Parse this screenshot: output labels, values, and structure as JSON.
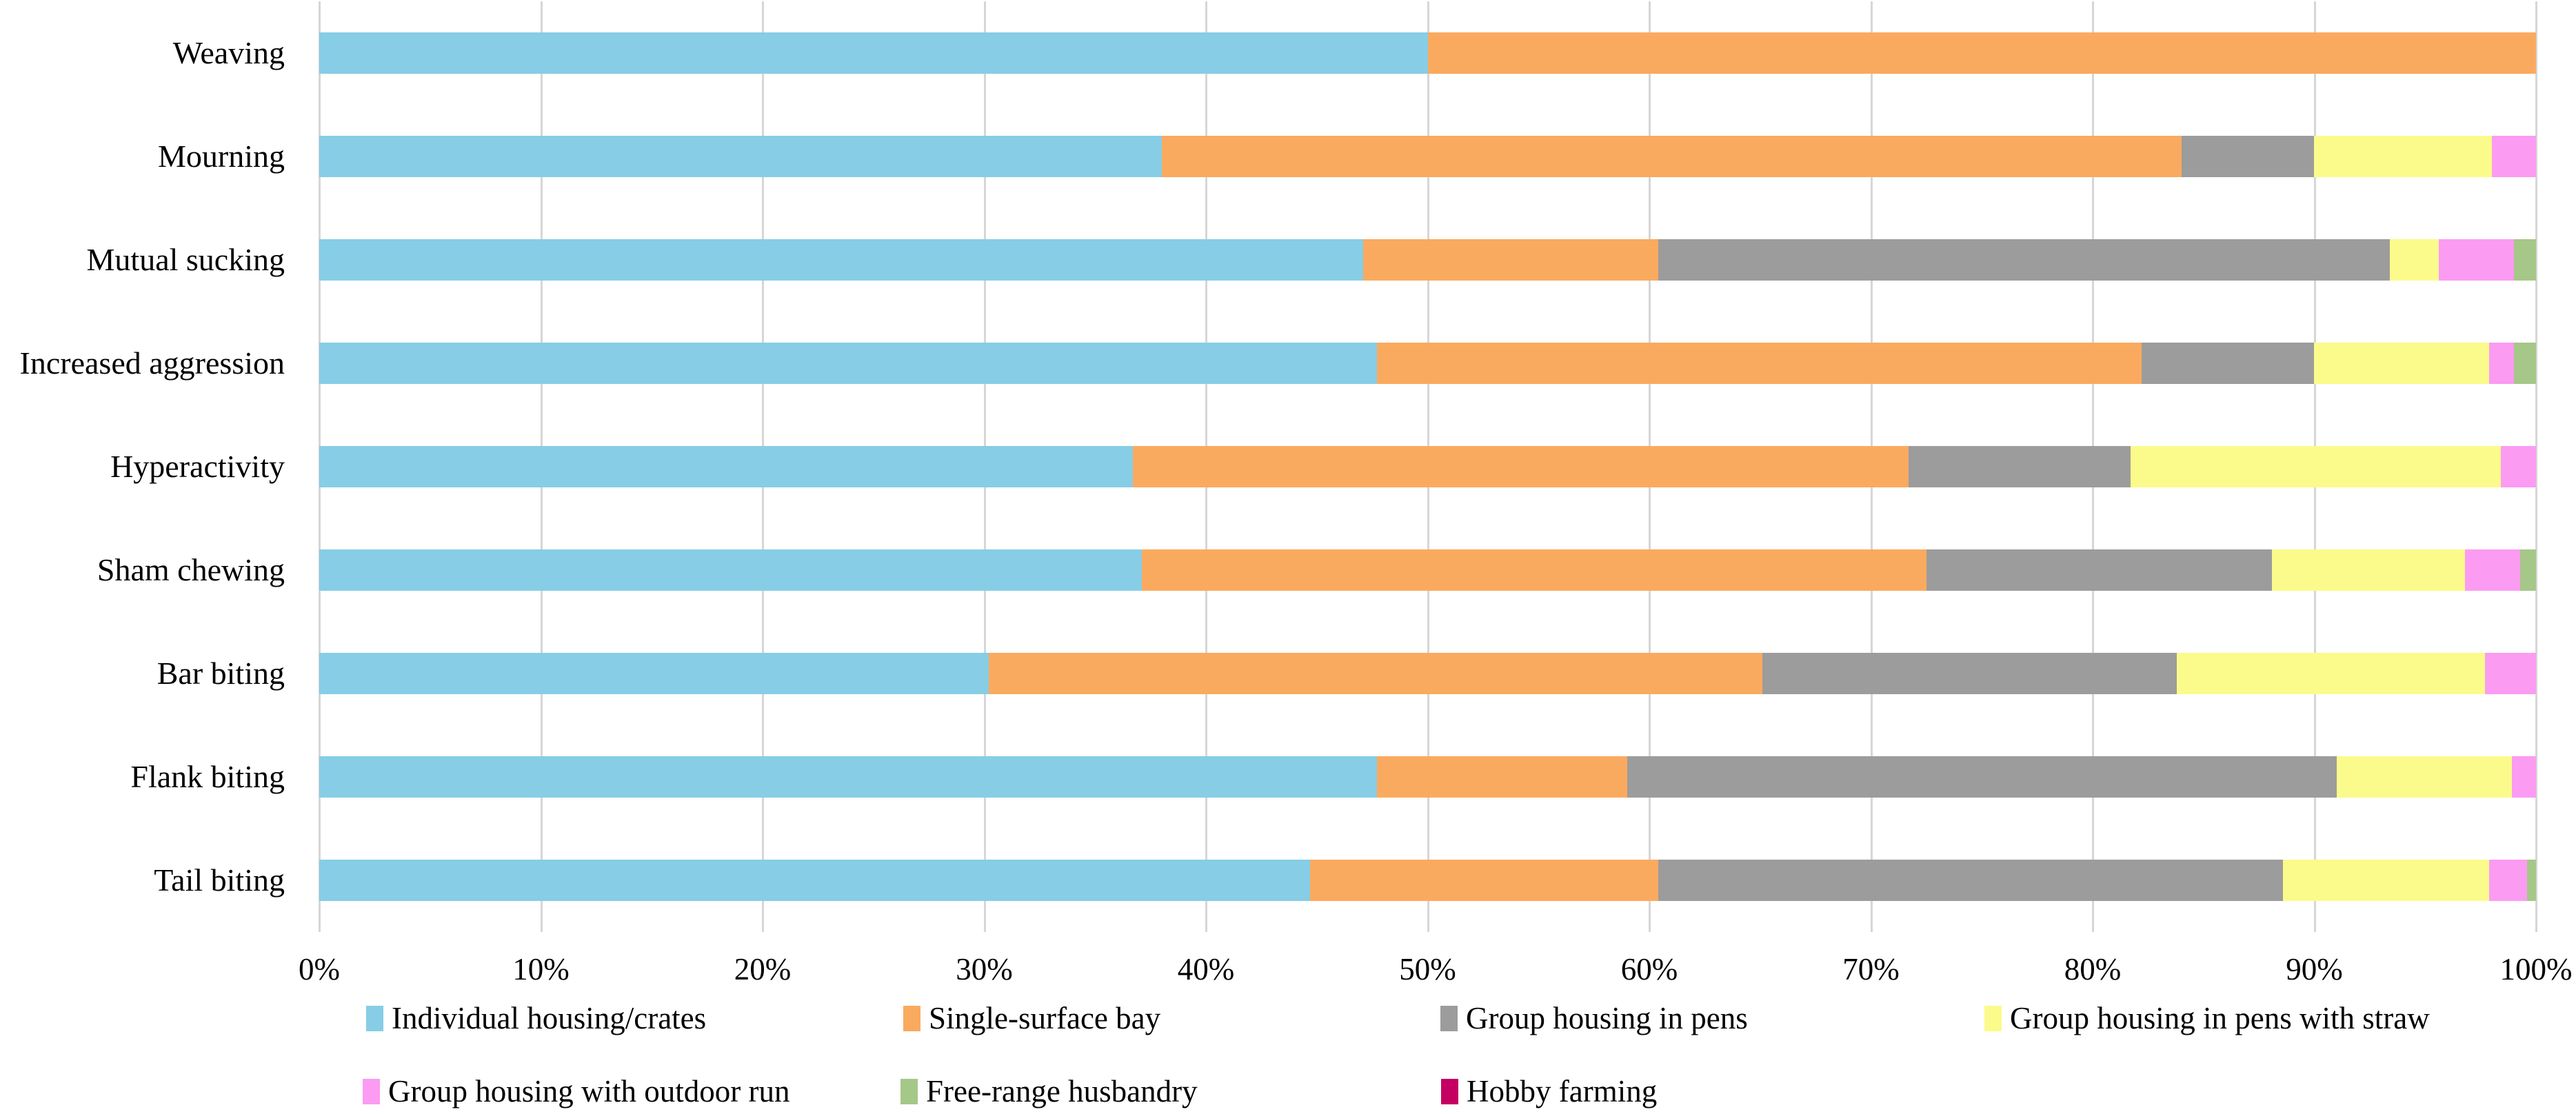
{
  "figure": {
    "background": "#FFFFFF",
    "text_color": "#000000",
    "gridline_color": "#D6D6D6"
  },
  "chart_data": {
    "type": "bar",
    "orientation": "horizontal",
    "stacked": true,
    "unit": "percent",
    "title": "",
    "xlabel": "",
    "ylabel": "",
    "xlim": [
      0,
      100
    ],
    "grid": "vertical",
    "legend_position": "bottom",
    "x_ticks": [
      "0%",
      "10%",
      "20%",
      "30%",
      "40%",
      "50%",
      "60%",
      "70%",
      "80%",
      "90%",
      "100%"
    ],
    "categories": [
      "Weaving",
      "Mourning",
      "Mutual sucking",
      "Increased aggression",
      "Hyperactivity",
      "Sham chewing",
      "Bar biting",
      "Flank biting",
      "Tail biting"
    ],
    "series": [
      {
        "name": "Individual housing/crates",
        "color": "#87CDE6",
        "values": [
          50,
          38,
          47.1,
          47.7,
          36.7,
          37.1,
          30.2,
          47.7,
          44.7
        ]
      },
      {
        "name": "Single-surface bay",
        "color": "#FAAA5F",
        "values": [
          50,
          46,
          13.3,
          34.5,
          35.0,
          35.4,
          34.9,
          11.3,
          15.7
        ]
      },
      {
        "name": "Group housing in pens",
        "color": "#9C9C9C",
        "values": [
          0,
          6,
          33.0,
          7.8,
          10.0,
          15.6,
          18.7,
          32.0,
          28.2
        ]
      },
      {
        "name": "Group housing in pens with straw",
        "color": "#FBFB8B",
        "values": [
          0,
          8,
          2.2,
          7.9,
          16.7,
          8.7,
          13.9,
          7.9,
          9.3
        ]
      },
      {
        "name": "Group housing with outdoor run",
        "color": "#FB9BF2",
        "values": [
          0,
          2,
          3.4,
          1.1,
          1.6,
          2.5,
          2.3,
          1.1,
          1.7
        ]
      },
      {
        "name": "Free-range husbandry",
        "color": "#A5C787",
        "values": [
          0,
          0,
          1.0,
          1.0,
          0,
          0.7,
          0,
          0,
          0.4
        ]
      },
      {
        "name": "Hobby farming",
        "color": "#C40062",
        "values": [
          0,
          0,
          0,
          0,
          0,
          0,
          0,
          0,
          0
        ]
      }
    ]
  },
  "legend": {
    "items": [
      {
        "label": "Individual housing/crates",
        "color": "#87CDE6"
      },
      {
        "label": "Single-surface bay",
        "color": "#FAAA5F"
      },
      {
        "label": "Group housing in pens",
        "color": "#9C9C9C"
      },
      {
        "label": "Group housing in pens with straw",
        "color": "#FBFB8B"
      },
      {
        "label": "Group housing with outdoor run",
        "color": "#FB9BF2"
      },
      {
        "label": "Free-range husbandry",
        "color": "#A5C787"
      },
      {
        "label": "Hobby farming",
        "color": "#C40062"
      }
    ]
  }
}
